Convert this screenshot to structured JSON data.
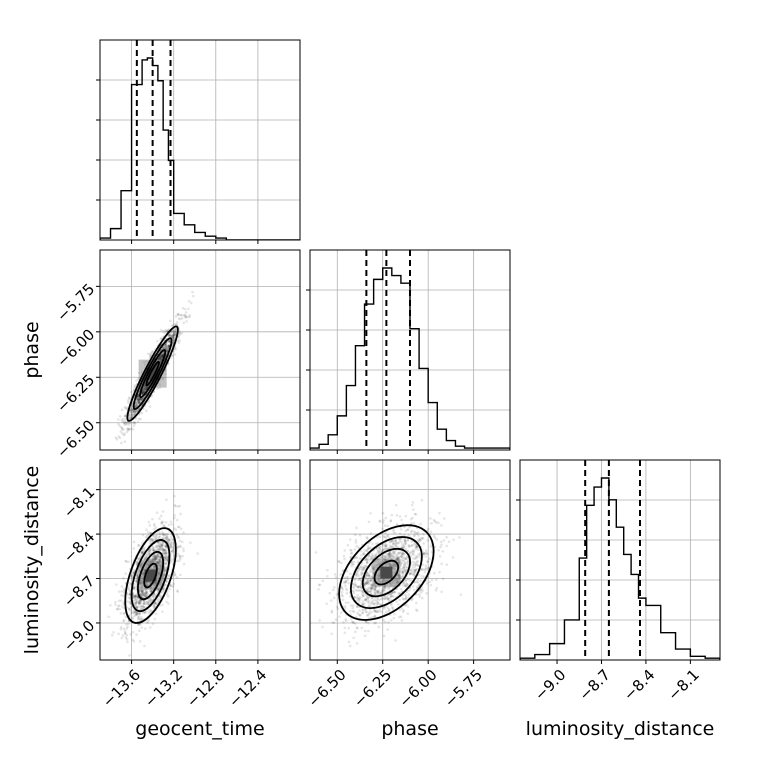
{
  "chart_data": {
    "type": "corner",
    "parameters": [
      "geocent_time",
      "phase",
      "luminosity_distance"
    ],
    "axis_labels": {
      "geocent_time": "geocent_time",
      "phase": "phase",
      "luminosity_distance": "luminosity_distance"
    },
    "ranges": {
      "geocent_time": [
        -13.9,
        -12.0
      ],
      "phase": [
        -6.65,
        -5.55
      ],
      "luminosity_distance": [
        -9.25,
        -7.9
      ]
    },
    "ticks": {
      "geocent_time": [
        {
          "value": -13.6,
          "label": "−13.6"
        },
        {
          "value": -13.2,
          "label": "−13.2"
        },
        {
          "value": -12.8,
          "label": "−12.8"
        },
        {
          "value": -12.4,
          "label": "−12.4"
        }
      ],
      "phase": [
        {
          "value": -6.5,
          "label": "−6.50"
        },
        {
          "value": -6.25,
          "label": "−6.25"
        },
        {
          "value": -6.0,
          "label": "−6.00"
        },
        {
          "value": -5.75,
          "label": "−5.75"
        }
      ],
      "luminosity_distance": [
        {
          "value": -9.0,
          "label": "−9.0"
        },
        {
          "value": -8.7,
          "label": "−8.7"
        },
        {
          "value": -8.4,
          "label": "−8.4"
        },
        {
          "value": -8.1,
          "label": "−8.1"
        }
      ]
    },
    "quantiles": {
      "geocent_time": [
        -13.55,
        -13.4,
        -13.23
      ],
      "phase": [
        -6.34,
        -6.23,
        -6.1
      ],
      "luminosity_distance": [
        -8.81,
        -8.65,
        -8.44
      ]
    },
    "histograms": {
      "geocent_time": {
        "edges": [
          -13.9,
          -13.8,
          -13.7,
          -13.6,
          -13.5,
          -13.45,
          -13.4,
          -13.35,
          -13.3,
          -13.25,
          -13.2,
          -13.1,
          -13.0,
          -12.9,
          -12.8,
          -12.7,
          -12.6,
          -12.5,
          -12.0
        ],
        "counts": [
          1,
          6,
          26,
          82,
          95,
          96,
          92,
          84,
          58,
          42,
          14,
          8,
          4,
          2,
          1,
          0,
          0,
          0
        ]
      },
      "phase": {
        "edges": [
          -6.65,
          -6.6,
          -6.55,
          -6.5,
          -6.45,
          -6.4,
          -6.35,
          -6.3,
          -6.25,
          -6.2,
          -6.15,
          -6.1,
          -6.05,
          -6.0,
          -5.95,
          -5.9,
          -5.85,
          -5.8,
          -5.55
        ],
        "counts": [
          1,
          3,
          8,
          18,
          34,
          55,
          77,
          90,
          96,
          92,
          88,
          64,
          43,
          25,
          11,
          5,
          2,
          1
        ]
      },
      "luminosity_distance": {
        "edges": [
          -9.25,
          -9.15,
          -9.05,
          -8.95,
          -8.85,
          -8.8,
          -8.75,
          -8.7,
          -8.65,
          -8.6,
          -8.55,
          -8.5,
          -8.45,
          -8.4,
          -8.3,
          -8.2,
          -8.1,
          -8.0,
          -7.9
        ],
        "counts": [
          1,
          3,
          9,
          22,
          56,
          85,
          95,
          100,
          88,
          73,
          58,
          47,
          34,
          30,
          15,
          6,
          2,
          1
        ]
      }
    },
    "pairs": [
      {
        "x": "geocent_time",
        "y": "phase",
        "mean": [
          -13.4,
          -6.23
        ],
        "sd": [
          0.12,
          0.13
        ],
        "corr": 0.93,
        "cloud_points": 1800
      },
      {
        "x": "geocent_time",
        "y": "luminosity_distance",
        "mean": [
          -13.42,
          -8.68
        ],
        "sd": [
          0.12,
          0.16
        ],
        "corr": 0.55,
        "cloud_points": 1500
      },
      {
        "x": "phase",
        "y": "luminosity_distance",
        "mean": [
          -6.23,
          -8.66
        ],
        "sd": [
          0.13,
          0.16
        ],
        "corr": 0.45,
        "cloud_points": 1500
      }
    ],
    "contour_levels": [
      0.5,
      1.0,
      1.5,
      2.0
    ],
    "grid": true
  }
}
